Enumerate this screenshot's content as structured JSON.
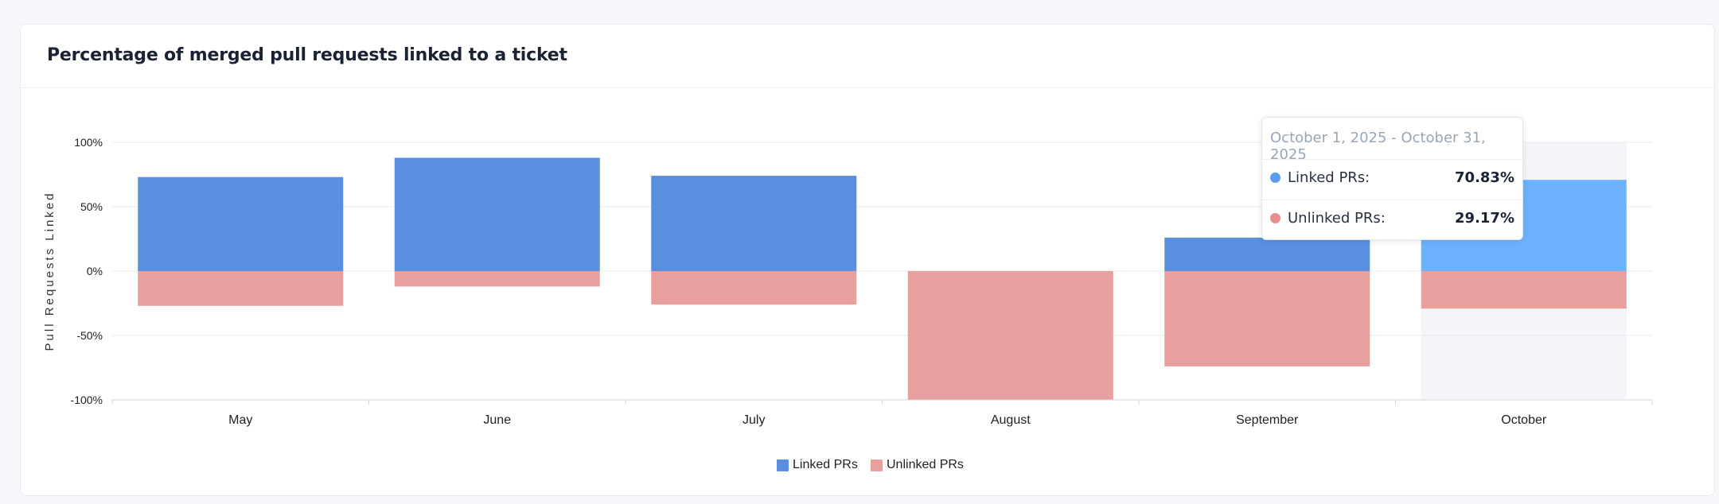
{
  "page": {
    "title": "Percentage of merged pull requests linked to a ticket"
  },
  "colors": {
    "linked": "#5a8fe0",
    "linked_highlight": "#6cb2ff",
    "unlinked": "#e8a09e",
    "hover_band": "#f3f5f9",
    "tooltip_linked_dot": "#5b9ded",
    "tooltip_unlinked_dot": "#e58e8c"
  },
  "chart_data": {
    "type": "bar",
    "stacked": "diverging",
    "title": "Percentage of merged pull requests linked to a ticket",
    "xlabel": "",
    "ylabel": "Pull Requests Linked",
    "categories": [
      "May",
      "June",
      "July",
      "August",
      "September",
      "October"
    ],
    "series": [
      {
        "name": "Linked PRs",
        "values": [
          73,
          88,
          74,
          0,
          26,
          70.83
        ]
      },
      {
        "name": "Unlinked PRs",
        "values": [
          -27,
          -12,
          -26,
          -100,
          -74,
          -29.17
        ]
      }
    ],
    "ylim": [
      -100,
      100
    ],
    "yticks": [
      100,
      50,
      0,
      -50,
      -100
    ],
    "ytick_labels": [
      "100%",
      "50%",
      "0%",
      "-50%",
      "-100%"
    ],
    "grid": true,
    "legend_position": "bottom-center",
    "highlighted_category": "October"
  },
  "legend": {
    "items": [
      {
        "label": "Linked PRs"
      },
      {
        "label": "Unlinked PRs"
      }
    ]
  },
  "tooltip": {
    "title": "October 1, 2025 - October 31, 2025",
    "rows": [
      {
        "label": "Linked PRs:",
        "value": "70.83%"
      },
      {
        "label": "Unlinked PRs:",
        "value": "29.17%"
      }
    ]
  }
}
